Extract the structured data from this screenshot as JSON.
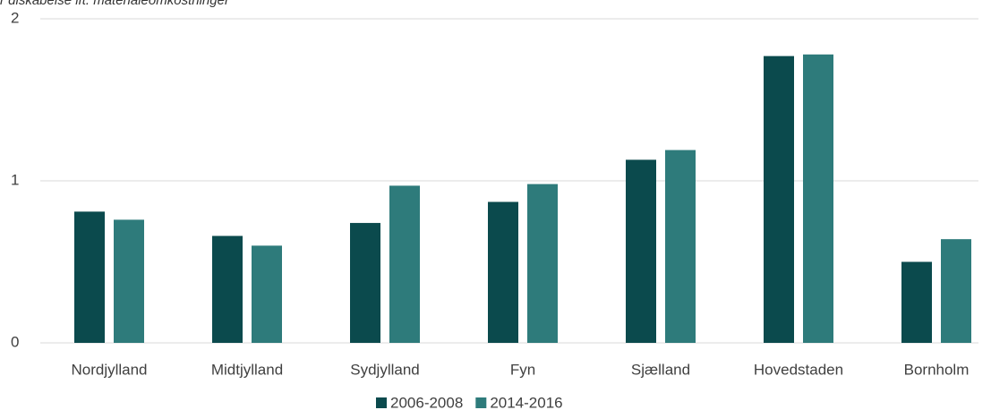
{
  "chart_data": {
    "type": "bar",
    "subtitle": "r diskabelse ift. materialeomkostninger",
    "categories": [
      "Nordjylland",
      "Midtjylland",
      "Sydjylland",
      "Fyn",
      "Sjælland",
      "Hovedstaden",
      "Bornholm"
    ],
    "series": [
      {
        "name": "2006-2008",
        "color": "#0b4a4d",
        "values": [
          0.81,
          0.66,
          0.74,
          0.87,
          1.13,
          1.77,
          0.5
        ]
      },
      {
        "name": "2014-2016",
        "color": "#2e7b7b",
        "values": [
          0.76,
          0.6,
          0.97,
          0.98,
          1.19,
          1.78,
          0.64
        ]
      }
    ],
    "ylim": [
      0,
      2
    ],
    "yticks": [
      0,
      1,
      2
    ],
    "grid": true,
    "legend": "bottom"
  }
}
